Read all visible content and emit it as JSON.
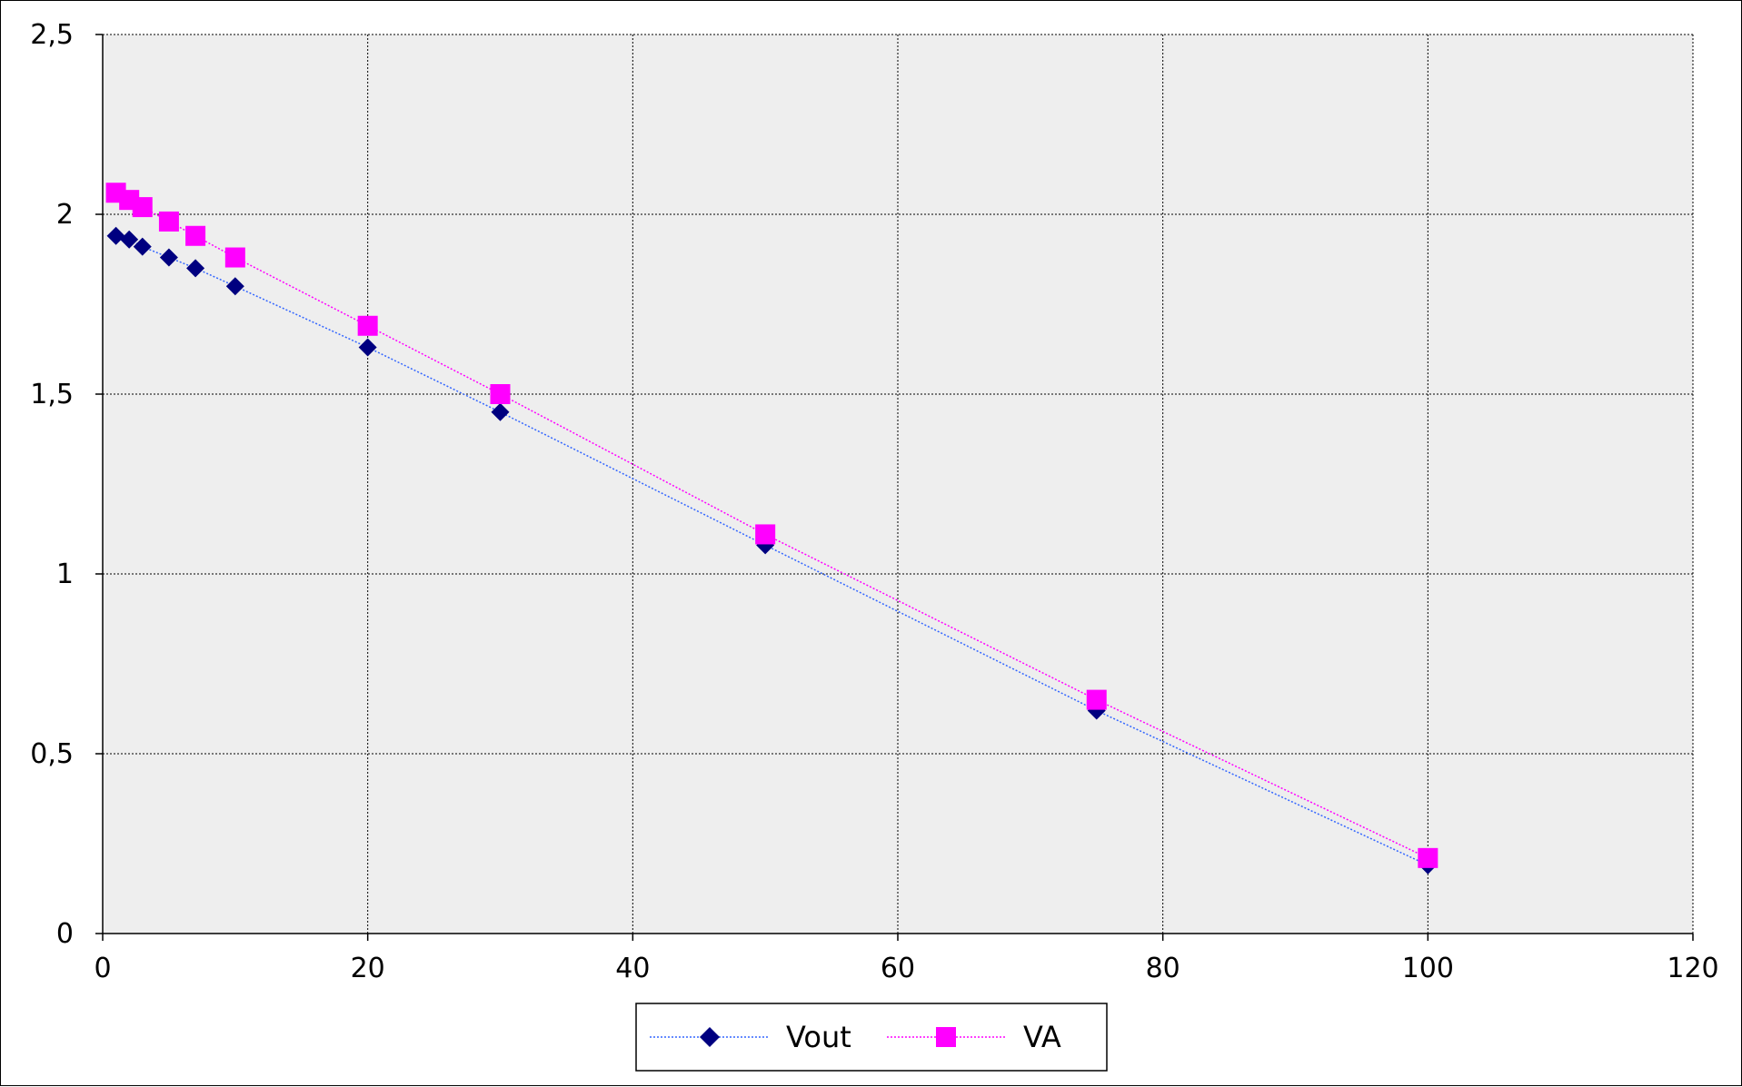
{
  "chart_data": {
    "type": "scatter",
    "title": "",
    "xlabel": "",
    "ylabel": "",
    "xlim": [
      0,
      120
    ],
    "ylim": [
      0,
      2.5
    ],
    "x_ticks": [
      "0",
      "20",
      "40",
      "60",
      "80",
      "100",
      "120"
    ],
    "x_tick_values": [
      0,
      20,
      40,
      60,
      80,
      100,
      120
    ],
    "y_ticks": [
      "0",
      "0,5",
      "1",
      "1,5",
      "2",
      "2,5"
    ],
    "y_tick_values": [
      0,
      0.5,
      1,
      1.5,
      2,
      2.5
    ],
    "grid": true,
    "legend_position": "bottom",
    "plot_background": "#eeeeee",
    "series": [
      {
        "name": "Vout",
        "marker": "diamond",
        "color": "#000080",
        "line_color": "#3366ff",
        "x": [
          1,
          2,
          3,
          5,
          7,
          10,
          20,
          30,
          50,
          75,
          100
        ],
        "y": [
          1.94,
          1.93,
          1.91,
          1.88,
          1.85,
          1.8,
          1.63,
          1.45,
          1.08,
          0.62,
          0.19
        ]
      },
      {
        "name": "VA",
        "marker": "square",
        "color": "#ff00ff",
        "line_color": "#ff00ff",
        "x": [
          1,
          2,
          3,
          5,
          7,
          10,
          20,
          30,
          50,
          75,
          100
        ],
        "y": [
          2.06,
          2.04,
          2.02,
          1.98,
          1.94,
          1.88,
          1.69,
          1.5,
          1.11,
          0.65,
          0.21
        ]
      }
    ]
  }
}
